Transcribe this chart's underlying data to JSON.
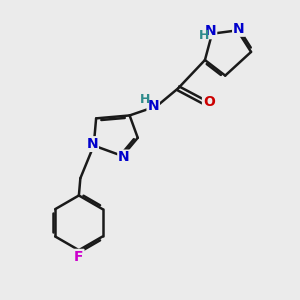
{
  "background_color": "#ebebeb",
  "bond_color": "#1a1a1a",
  "bond_width": 1.8,
  "atom_colors": {
    "N": "#0000cc",
    "O": "#cc0000",
    "F": "#cc00cc",
    "H": "#2e8b8b"
  },
  "font_size": 10,
  "figsize": [
    3.0,
    3.0
  ],
  "dpi": 100
}
